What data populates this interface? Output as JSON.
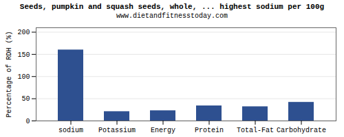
{
  "chart_data": {
    "type": "bar",
    "title": "Seeds, pumpkin and squash seeds, whole, ... highest sodium per 100g",
    "subtitle": "www.dietandfitnesstoday.com",
    "ylabel": "Percentage of RDH (%)",
    "categories": [
      "sodium",
      "Potassium",
      "Energy",
      "Protein",
      "Total-Fat",
      "Carbohydrate"
    ],
    "values": [
      160,
      21,
      23,
      34,
      32,
      42
    ],
    "color": "#2e5090",
    "ylim": [
      0,
      210
    ],
    "yticks": [
      0,
      50,
      100,
      150,
      200
    ],
    "grid": true
  }
}
